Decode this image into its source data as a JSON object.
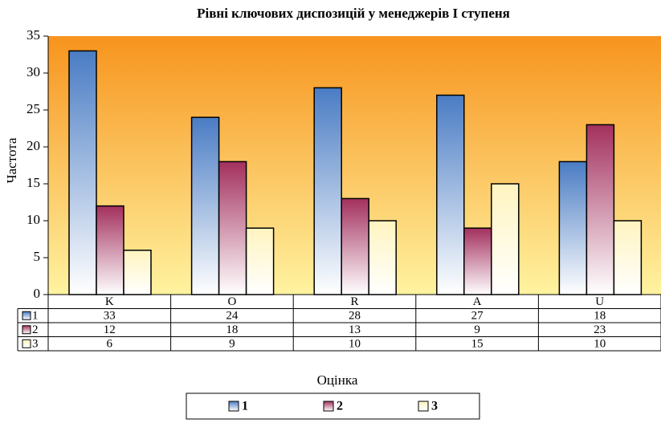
{
  "chart_data": {
    "type": "bar",
    "title": "Рівні ключових диспозицій у менеджерів І ступеня",
    "x_label": "Оцінка",
    "y_label": "Частота",
    "categories": [
      "K",
      "O",
      "R",
      "A",
      "U"
    ],
    "series": [
      {
        "name": "1",
        "color": "#4a7cc4",
        "values": [
          33,
          24,
          28,
          27,
          18
        ]
      },
      {
        "name": "2",
        "color": "#a3305e",
        "values": [
          12,
          18,
          13,
          9,
          23
        ]
      },
      {
        "name": "3",
        "color": "#fff4c0",
        "values": [
          6,
          9,
          10,
          15,
          10
        ]
      }
    ],
    "ylim": [
      0,
      35
    ],
    "yticks": [
      0,
      5,
      10,
      15,
      20,
      25,
      30,
      35
    ],
    "data_table": true,
    "legend": "bottom"
  }
}
